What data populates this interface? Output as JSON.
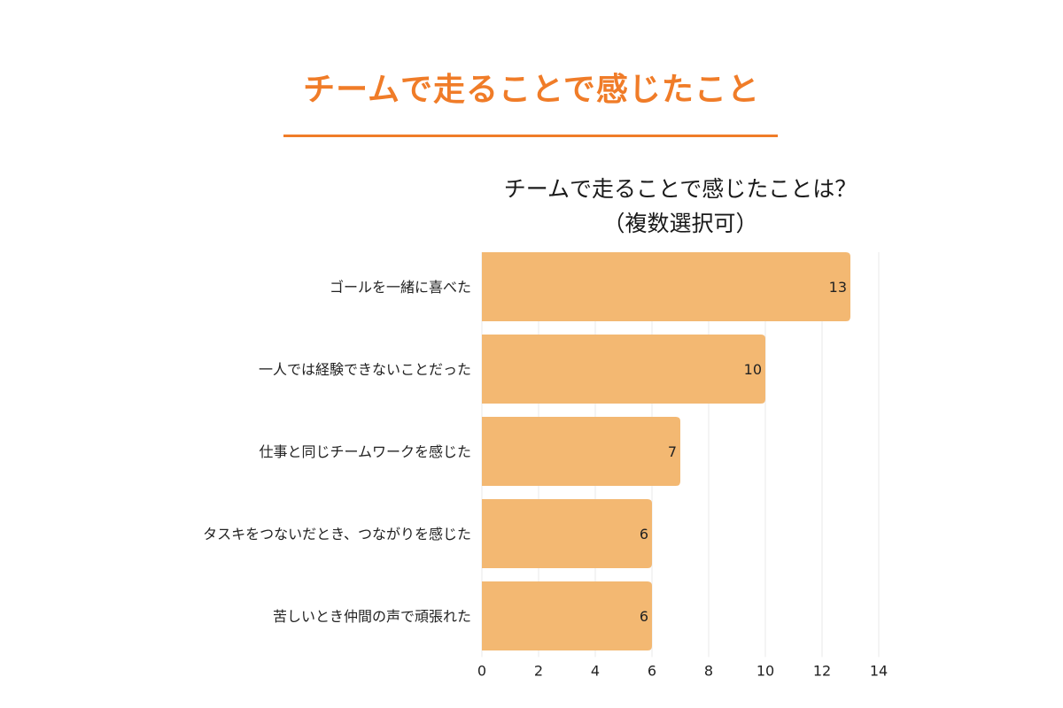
{
  "page": {
    "heading": "チームで走ることで感じたこと"
  },
  "colors": {
    "accent": "#f07c28",
    "bar": "#f3b872",
    "grid": "#e9e9e9"
  },
  "chart_data": {
    "type": "bar",
    "orientation": "horizontal",
    "title": "チームで走ることで感じたことは？",
    "subtitle": "（複数選択可）",
    "categories": [
      "ゴールを一緒に喜べた",
      "一人では経験できないことだった",
      "仕事と同じチームワークを感じた",
      "タスキをつないだとき、つながりを感じた",
      "苦しいとき仲間の声で頑張れた"
    ],
    "values": [
      13,
      10,
      7,
      6,
      6
    ],
    "xlim": [
      0,
      14
    ],
    "xticks": [
      0,
      2,
      4,
      6,
      8,
      10,
      12,
      14
    ],
    "grid": true,
    "legend": "none",
    "data_labels": true
  }
}
